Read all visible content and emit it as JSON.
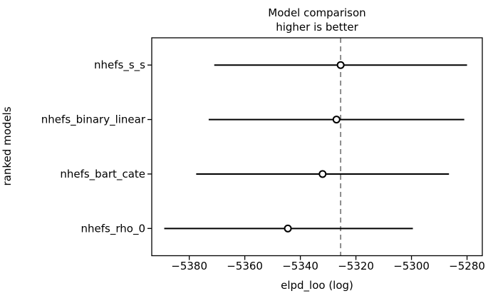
{
  "figure": {
    "title": "Model comparison",
    "subtitle": "higher is better",
    "xlabel": "elpd_loo (log)",
    "ylabel": "ranked models"
  },
  "chart_data": {
    "type": "scatter",
    "title": "Model comparison",
    "subtitle": "higher is better",
    "xlabel": "elpd_loo (log)",
    "ylabel": "ranked models",
    "legend": false,
    "grid": false,
    "categories": [
      "nhefs_s_s",
      "nhefs_binary_linear",
      "nhefs_bart_cate",
      "nhefs_rho_0"
    ],
    "models": [
      {
        "name": "nhefs_s_s",
        "elpd_loo": -5325.5,
        "ci_lower": -5371.0,
        "ci_upper": -5280.0
      },
      {
        "name": "nhefs_binary_linear",
        "elpd_loo": -5327.0,
        "ci_lower": -5373.0,
        "ci_upper": -5281.0
      },
      {
        "name": "nhefs_bart_cate",
        "elpd_loo": -5332.0,
        "ci_lower": -5377.5,
        "ci_upper": -5286.5
      },
      {
        "name": "nhefs_rho_0",
        "elpd_loo": -5344.5,
        "ci_lower": -5389.0,
        "ci_upper": -5299.5
      }
    ],
    "reference_line_x": -5325.5,
    "xlim": [
      -5393.5,
      -5274.5
    ],
    "xticks": [
      -5380,
      -5360,
      -5340,
      -5320,
      -5300,
      -5280
    ],
    "xtick_labels": [
      "−5380",
      "−5360",
      "−5340",
      "−5320",
      "−5300",
      "−5280"
    ],
    "colors": {
      "point_marker_fill": "#ffffff",
      "point_marker_edge": "#000000",
      "error_bar": "#000000",
      "reference_line": "#808080",
      "spine": "#000000",
      "background": "#ffffff"
    }
  }
}
